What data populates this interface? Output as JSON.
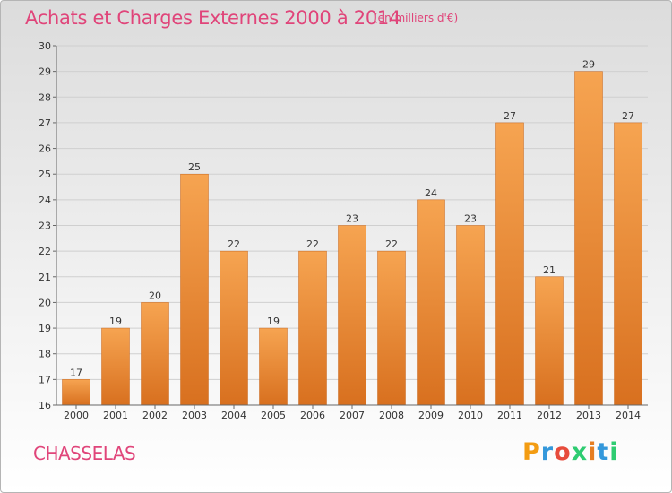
{
  "title": "Achats et Charges Externes 2000 à 2014",
  "subtitle": "(en milliers d'€)",
  "commune": "CHASSELAS",
  "logo": {
    "letters": [
      "P",
      "r",
      "o",
      "x",
      "i",
      "t",
      "i"
    ],
    "colors": [
      "#f39c12",
      "#3498db",
      "#e74c3c",
      "#2ecc71",
      "#e67e22",
      "#3498db",
      "#2ecc71"
    ]
  },
  "colors": {
    "title": "#e0457a",
    "bar_light": "#f6a451",
    "bar_dark": "#d8701f",
    "bar_edge": "#c8661c"
  },
  "chart_data": {
    "type": "bar",
    "categories": [
      "2000",
      "2001",
      "2002",
      "2003",
      "2004",
      "2005",
      "2006",
      "2007",
      "2008",
      "2009",
      "2010",
      "2011",
      "2012",
      "2013",
      "2014"
    ],
    "values": [
      17,
      19,
      20,
      25,
      22,
      19,
      22,
      23,
      22,
      24,
      23,
      27,
      21,
      29,
      27
    ],
    "yticks": [
      16,
      17,
      18,
      19,
      20,
      21,
      22,
      23,
      24,
      25,
      26,
      27,
      28,
      29,
      30
    ],
    "ylim": [
      16,
      30
    ],
    "grid": true,
    "legend": "none"
  }
}
